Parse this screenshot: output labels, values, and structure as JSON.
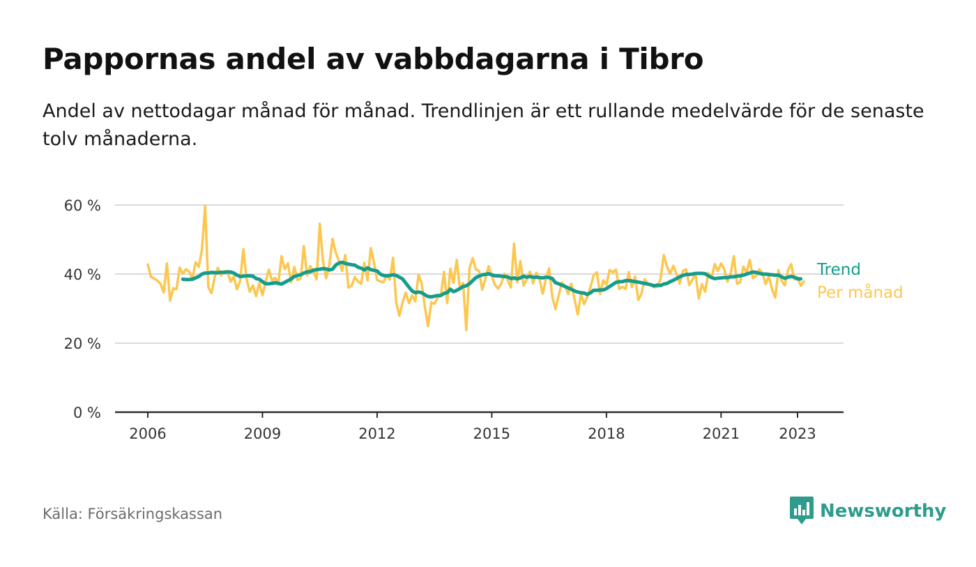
{
  "header": {
    "title": "Pappornas andel av vabbdagarna i Tibro",
    "subtitle": "Andel av nettodagar månad för månad. Trendlinjen är ett rullande medelvärde för de senaste tolv månaderna."
  },
  "footer": {
    "source": "Källa: Försäkringskassan",
    "brand": "Newsworthy",
    "brand_icon": "bar-chart-speech-bubble-icon"
  },
  "colors": {
    "monthly": "#fcc74f",
    "trend": "#159c8c",
    "grid": "#d9d9d9",
    "axis": "#2b2b2b",
    "brand": "#2d9c8c"
  },
  "chart_data": {
    "type": "line",
    "title": "",
    "xlabel": "",
    "ylabel": "",
    "ylim": [
      0,
      60
    ],
    "y_ticks": [
      {
        "value": 0,
        "label": "0 %"
      },
      {
        "value": 20,
        "label": "20 %"
      },
      {
        "value": 40,
        "label": "40 %"
      },
      {
        "value": 60,
        "label": "60 %"
      }
    ],
    "x_ticks": [
      {
        "value": 2006,
        "label": "2006"
      },
      {
        "value": 2009,
        "label": "2009"
      },
      {
        "value": 2012,
        "label": "2012"
      },
      {
        "value": 2015,
        "label": "2015"
      },
      {
        "value": 2018,
        "label": "2018"
      },
      {
        "value": 2021,
        "label": "2021"
      },
      {
        "value": 2023,
        "label": "2023"
      }
    ],
    "grid": true,
    "legend": "right-end labels",
    "x_start": "2006-01",
    "x_step": "1 month",
    "series": [
      {
        "name": "Per månad",
        "color": "#fcc74f",
        "values": [
          42.8,
          39.2,
          38.7,
          38.1,
          37.2,
          34.7,
          43.1,
          32.3,
          35.9,
          35.6,
          41.9,
          40.1,
          41.4,
          40.7,
          38.6,
          43.4,
          42.1,
          47.1,
          59.7,
          36.2,
          34.5,
          39.1,
          41.8,
          39.6,
          40.8,
          40.9,
          37.8,
          39.3,
          35.6,
          38.1,
          47.2,
          38.7,
          34.9,
          36.7,
          33.6,
          37.4,
          33.9,
          37.9,
          41.3,
          38.1,
          38.9,
          37.4,
          45.2,
          41.4,
          43.1,
          37.6,
          42.1,
          38.3,
          38.7,
          48.1,
          39.6,
          42.3,
          40.8,
          38.5,
          54.6,
          43.9,
          38.8,
          42.6,
          50.2,
          46.3,
          43.8,
          40.9,
          45.5,
          36.1,
          36.6,
          39.1,
          37.9,
          37.2,
          43.3,
          38.2,
          47.5,
          43.5,
          38.3,
          37.9,
          37.6,
          39.6,
          38.4,
          44.7,
          31.8,
          27.9,
          31.8,
          34.6,
          31.6,
          33.8,
          32.1,
          39.8,
          37.3,
          30.4,
          24.9,
          31.8,
          31.4,
          33.2,
          33.8,
          40.6,
          31.6,
          41.6,
          37.4,
          44.1,
          35.8,
          37.4,
          23.8,
          41.6,
          44.6,
          41.4,
          40.9,
          35.5,
          38.6,
          42.3,
          39.4,
          36.9,
          35.8,
          37.3,
          40.1,
          38.3,
          36.1,
          48.8,
          37.6,
          43.8,
          36.7,
          38.5,
          40.7,
          37.3,
          40.4,
          38.6,
          34.3,
          38.6,
          41.7,
          33.4,
          29.9,
          33.8,
          37.6,
          36.6,
          34.2,
          37.2,
          32.7,
          28.3,
          34.2,
          31.3,
          33.3,
          36.2,
          39.7,
          40.5,
          34.2,
          38.2,
          36.9,
          41.2,
          40.5,
          41.3,
          35.7,
          36.3,
          35.7,
          40.6,
          36.2,
          39.3,
          32.5,
          34.3,
          38.5,
          37.2,
          36.7,
          36.2,
          36.3,
          38.6,
          45.5,
          42.2,
          40.1,
          42.4,
          40.1,
          37.2,
          40.9,
          41.4,
          36.8,
          38.4,
          39.9,
          32.9,
          37.1,
          34.9,
          40.3,
          38.8,
          42.9,
          40.9,
          43.1,
          41.4,
          37.8,
          40.1,
          45.2,
          37.2,
          37.6,
          42.2,
          40.4,
          44.1,
          38.8,
          39.5,
          41.4,
          40.3,
          37.1,
          39.4,
          35.6,
          33.2,
          41.1,
          38.1,
          36.7,
          41.1,
          42.9,
          38.5,
          39.1,
          36.6,
          37.9
        ]
      },
      {
        "name": "Trend",
        "color": "#159c8c",
        "start": "2006-12",
        "values": [
          38.5,
          38.4,
          38.4,
          38.5,
          38.9,
          39.3,
          40.0,
          40.3,
          40.3,
          40.5,
          40.4,
          40.4,
          40.5,
          40.5,
          40.6,
          40.6,
          40.3,
          39.7,
          39.3,
          39.4,
          39.5,
          39.5,
          39.4,
          38.7,
          38.5,
          37.8,
          37.2,
          37.2,
          37.3,
          37.5,
          37.3,
          37.1,
          37.6,
          38.1,
          38.6,
          39.3,
          39.6,
          39.8,
          40.3,
          40.6,
          40.7,
          41.1,
          41.3,
          41.4,
          41.6,
          41.5,
          41.2,
          41.4,
          42.6,
          43.2,
          43.4,
          43.1,
          42.9,
          42.7,
          42.6,
          42.0,
          41.7,
          41.2,
          41.8,
          41.3,
          41.1,
          40.9,
          40.0,
          39.6,
          39.5,
          39.6,
          39.8,
          39.6,
          39.1,
          38.6,
          37.4,
          36.2,
          35.1,
          34.6,
          34.8,
          34.6,
          34.0,
          33.5,
          33.4,
          33.6,
          33.8,
          33.8,
          34.4,
          34.6,
          35.6,
          34.9,
          35.3,
          35.8,
          36.4,
          36.6,
          37.2,
          38.1,
          39.0,
          39.4,
          39.8,
          39.9,
          40.1,
          39.8,
          39.5,
          39.5,
          39.4,
          39.3,
          39.2,
          38.7,
          38.9,
          38.6,
          38.9,
          39.4,
          39.1,
          39.3,
          39.1,
          39.1,
          39.0,
          38.9,
          39.1,
          39.0,
          38.7,
          37.5,
          37.2,
          36.8,
          36.4,
          36.0,
          35.6,
          35.1,
          34.8,
          34.6,
          34.5,
          34.1,
          34.6,
          35.3,
          35.3,
          35.4,
          35.4,
          35.8,
          36.4,
          37.0,
          37.6,
          37.8,
          37.8,
          38.1,
          38.1,
          38.0,
          37.8,
          37.7,
          37.5,
          37.3,
          37.1,
          36.9,
          36.6,
          36.8,
          36.7,
          37.1,
          37.3,
          37.8,
          38.2,
          38.7,
          39.2,
          39.6,
          39.9,
          39.9,
          40.0,
          40.2,
          40.2,
          40.2,
          40.1,
          39.5,
          39.0,
          38.7,
          38.8,
          38.9,
          39.0,
          39.0,
          39.2,
          39.2,
          39.4,
          39.5,
          39.7,
          40.0,
          40.3,
          40.6,
          40.5,
          40.2,
          40.0,
          40.0,
          39.9,
          39.8,
          39.7,
          39.7,
          39.2,
          38.8,
          39.1,
          39.3,
          39.1,
          38.6,
          38.6
        ]
      }
    ]
  }
}
